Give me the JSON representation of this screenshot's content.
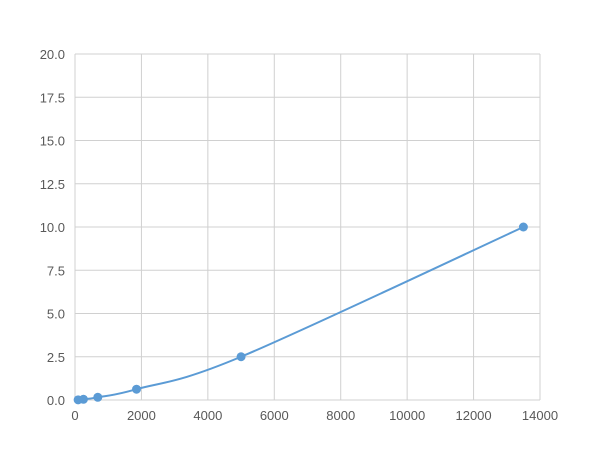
{
  "chart_data": {
    "type": "scatter",
    "title": "",
    "xlabel": "",
    "ylabel": "",
    "xlim": [
      0,
      14000
    ],
    "ylim": [
      0,
      20
    ],
    "x_ticks": [
      "0",
      "2000",
      "4000",
      "6000",
      "8000",
      "10000",
      "12000",
      "14000"
    ],
    "y_ticks": [
      "0.0",
      "2.5",
      "5.0",
      "7.5",
      "10.0",
      "12.5",
      "15.0",
      "17.5",
      "20.0"
    ],
    "grid": true,
    "series": [
      {
        "x": [
          94,
          254,
          686,
          1852,
          5000,
          13500
        ],
        "y": [
          0.01,
          0.04,
          0.156,
          0.625,
          2.5,
          10.0
        ],
        "color": "#5b9bd5",
        "smooth_line": true
      }
    ]
  }
}
